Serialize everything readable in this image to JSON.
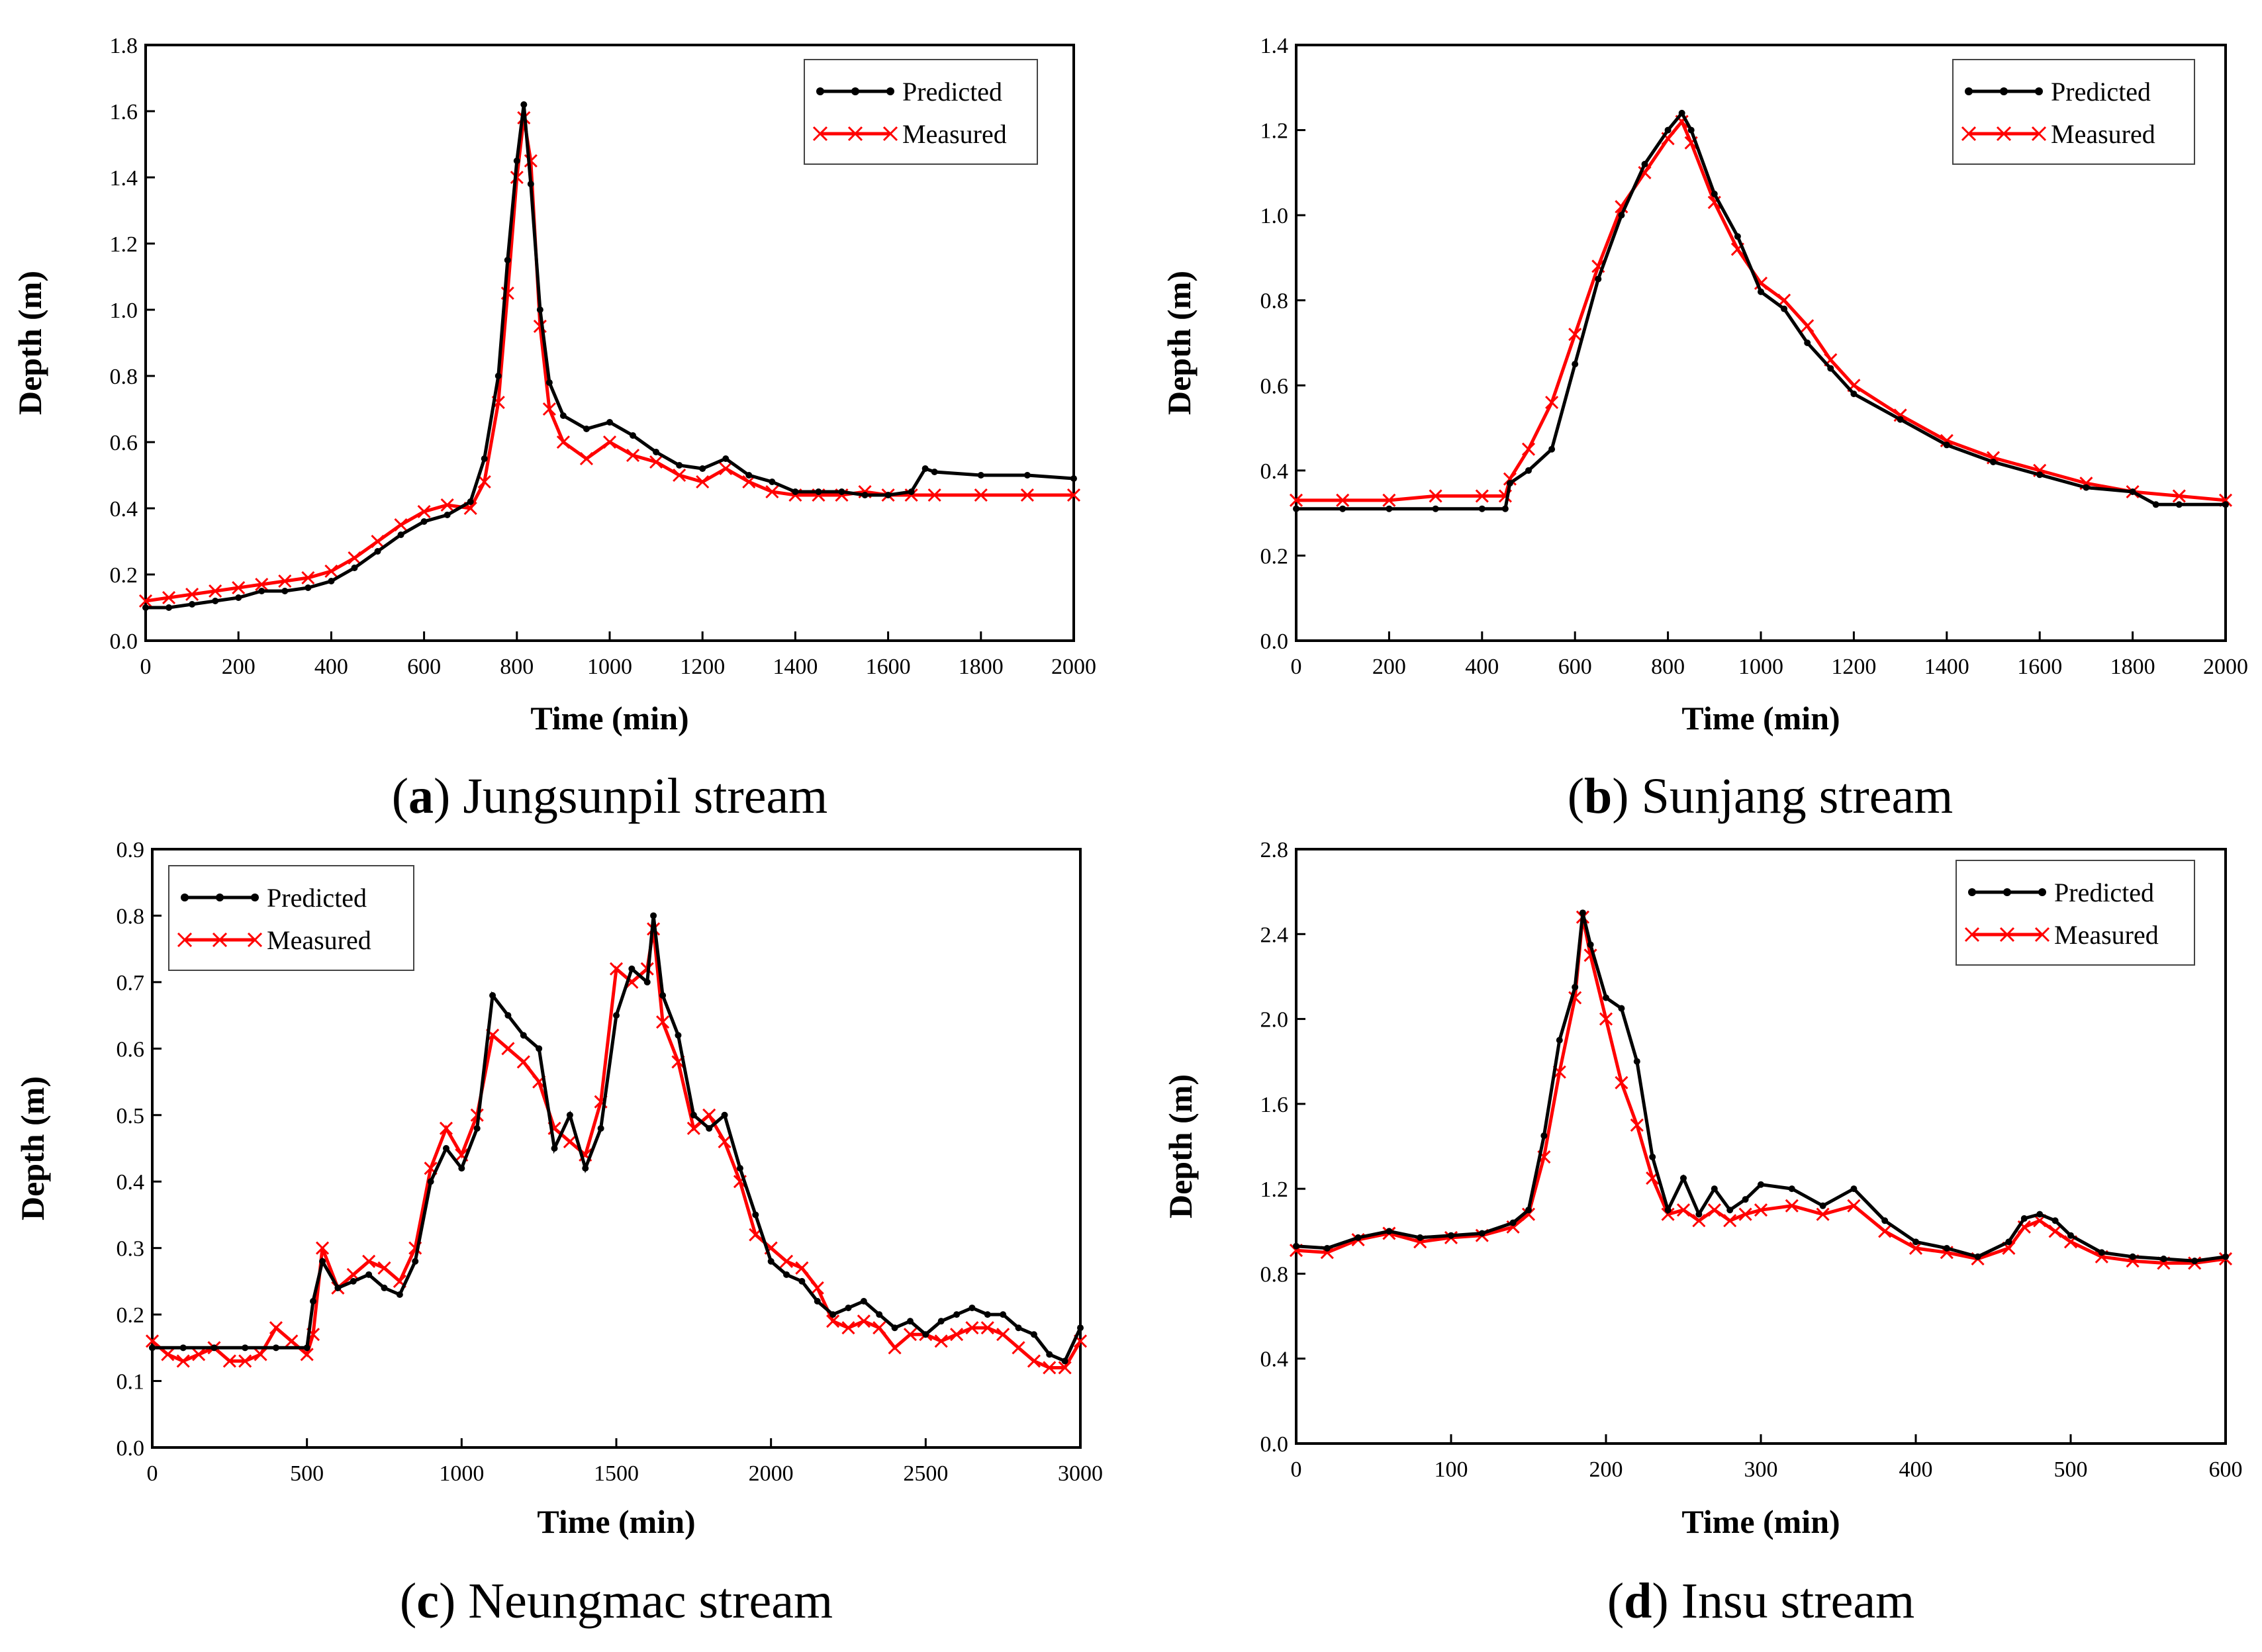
{
  "colors": {
    "predicted": "#000000",
    "measured": "#ff0000",
    "axis": "#000000"
  },
  "legend": {
    "predicted_label": "Predicted",
    "measured_label": "Measured"
  },
  "chart_data": [
    {
      "type": "line",
      "caption_letter": "a",
      "caption_text": "Jungsunpil stream",
      "xlabel": "Time (min)",
      "ylabel": "Depth (m)",
      "xlim": [
        0,
        2000
      ],
      "ylim": [
        0,
        1.8
      ],
      "xticks": [
        0,
        200,
        400,
        600,
        800,
        1000,
        1200,
        1400,
        1600,
        1800,
        2000
      ],
      "yticks": [
        0.0,
        0.2,
        0.4,
        0.6,
        0.8,
        1.0,
        1.2,
        1.4,
        1.6,
        1.8
      ],
      "ytick_decimals": 1,
      "legend_position": "top-right",
      "series": [
        {
          "name": "Predicted",
          "x": [
            0,
            50,
            100,
            150,
            200,
            250,
            300,
            350,
            400,
            450,
            500,
            550,
            600,
            650,
            700,
            730,
            760,
            780,
            800,
            815,
            830,
            850,
            870,
            900,
            950,
            1000,
            1050,
            1100,
            1150,
            1200,
            1250,
            1300,
            1350,
            1400,
            1450,
            1500,
            1550,
            1600,
            1650,
            1680,
            1700,
            1800,
            1900,
            2000
          ],
          "y": [
            0.1,
            0.1,
            0.11,
            0.12,
            0.13,
            0.15,
            0.15,
            0.16,
            0.18,
            0.22,
            0.27,
            0.32,
            0.36,
            0.38,
            0.42,
            0.55,
            0.8,
            1.15,
            1.45,
            1.62,
            1.38,
            1.0,
            0.78,
            0.68,
            0.64,
            0.66,
            0.62,
            0.57,
            0.53,
            0.52,
            0.55,
            0.5,
            0.48,
            0.45,
            0.45,
            0.45,
            0.44,
            0.44,
            0.45,
            0.52,
            0.51,
            0.5,
            0.5,
            0.49
          ]
        },
        {
          "name": "Measured",
          "x": [
            0,
            50,
            100,
            150,
            200,
            250,
            300,
            350,
            400,
            450,
            500,
            550,
            600,
            650,
            700,
            730,
            760,
            780,
            800,
            815,
            830,
            850,
            870,
            900,
            950,
            1000,
            1050,
            1100,
            1150,
            1200,
            1250,
            1300,
            1350,
            1400,
            1450,
            1500,
            1550,
            1600,
            1650,
            1700,
            1800,
            1900,
            2000
          ],
          "y": [
            0.12,
            0.13,
            0.14,
            0.15,
            0.16,
            0.17,
            0.18,
            0.19,
            0.21,
            0.25,
            0.3,
            0.35,
            0.39,
            0.41,
            0.4,
            0.48,
            0.72,
            1.05,
            1.4,
            1.58,
            1.45,
            0.95,
            0.7,
            0.6,
            0.55,
            0.6,
            0.56,
            0.54,
            0.5,
            0.48,
            0.52,
            0.48,
            0.45,
            0.44,
            0.44,
            0.44,
            0.45,
            0.44,
            0.44,
            0.44,
            0.44,
            0.44,
            0.44
          ]
        }
      ]
    },
    {
      "type": "line",
      "caption_letter": "b",
      "caption_text": "Sunjang stream",
      "xlabel": "Time (min)",
      "ylabel": "Depth (m)",
      "xlim": [
        0,
        2000
      ],
      "ylim": [
        0,
        1.4
      ],
      "xticks": [
        0,
        200,
        400,
        600,
        800,
        1000,
        1200,
        1400,
        1600,
        1800,
        2000
      ],
      "yticks": [
        0.0,
        0.2,
        0.4,
        0.6,
        0.8,
        1.0,
        1.2,
        1.4
      ],
      "ytick_decimals": 1,
      "legend_position": "top-right",
      "series": [
        {
          "name": "Predicted",
          "x": [
            0,
            100,
            200,
            300,
            400,
            450,
            460,
            500,
            550,
            600,
            650,
            700,
            750,
            800,
            830,
            850,
            900,
            950,
            1000,
            1050,
            1100,
            1150,
            1200,
            1300,
            1400,
            1500,
            1600,
            1700,
            1800,
            1850,
            1900,
            2000
          ],
          "y": [
            0.31,
            0.31,
            0.31,
            0.31,
            0.31,
            0.31,
            0.37,
            0.4,
            0.45,
            0.65,
            0.85,
            1.0,
            1.12,
            1.2,
            1.24,
            1.2,
            1.05,
            0.95,
            0.82,
            0.78,
            0.7,
            0.64,
            0.58,
            0.52,
            0.46,
            0.42,
            0.39,
            0.36,
            0.35,
            0.32,
            0.32,
            0.32
          ]
        },
        {
          "name": "Measured",
          "x": [
            0,
            100,
            200,
            300,
            400,
            450,
            460,
            500,
            550,
            600,
            650,
            700,
            750,
            800,
            830,
            850,
            900,
            950,
            1000,
            1050,
            1100,
            1150,
            1200,
            1300,
            1400,
            1500,
            1600,
            1700,
            1800,
            1900,
            2000
          ],
          "y": [
            0.33,
            0.33,
            0.33,
            0.34,
            0.34,
            0.34,
            0.38,
            0.45,
            0.56,
            0.72,
            0.88,
            1.02,
            1.1,
            1.18,
            1.22,
            1.17,
            1.03,
            0.92,
            0.84,
            0.8,
            0.74,
            0.66,
            0.6,
            0.53,
            0.47,
            0.43,
            0.4,
            0.37,
            0.35,
            0.34,
            0.33
          ]
        }
      ]
    },
    {
      "type": "line",
      "caption_letter": "c",
      "caption_text": "Neungmac stream",
      "xlabel": "Time (min)",
      "ylabel": "Depth (m)",
      "xlim": [
        0,
        3000
      ],
      "ylim": [
        0,
        0.9
      ],
      "xticks": [
        0,
        500,
        1000,
        1500,
        2000,
        2500,
        3000
      ],
      "yticks": [
        0.0,
        0.1,
        0.2,
        0.3,
        0.4,
        0.5,
        0.6,
        0.7,
        0.8,
        0.9
      ],
      "ytick_decimals": 1,
      "legend_position": "top-left",
      "series": [
        {
          "name": "Predicted",
          "x": [
            0,
            100,
            200,
            300,
            400,
            500,
            520,
            550,
            600,
            650,
            700,
            750,
            800,
            850,
            900,
            950,
            1000,
            1050,
            1100,
            1150,
            1200,
            1250,
            1300,
            1350,
            1400,
            1450,
            1500,
            1550,
            1600,
            1620,
            1650,
            1700,
            1750,
            1800,
            1850,
            1900,
            1950,
            2000,
            2050,
            2100,
            2150,
            2200,
            2250,
            2300,
            2350,
            2400,
            2450,
            2500,
            2550,
            2600,
            2650,
            2700,
            2750,
            2800,
            2850,
            2900,
            2950,
            3000
          ],
          "y": [
            0.15,
            0.15,
            0.15,
            0.15,
            0.15,
            0.15,
            0.22,
            0.28,
            0.24,
            0.25,
            0.26,
            0.24,
            0.23,
            0.28,
            0.4,
            0.45,
            0.42,
            0.48,
            0.68,
            0.65,
            0.62,
            0.6,
            0.45,
            0.5,
            0.42,
            0.48,
            0.65,
            0.72,
            0.7,
            0.8,
            0.68,
            0.62,
            0.5,
            0.48,
            0.5,
            0.42,
            0.35,
            0.28,
            0.26,
            0.25,
            0.22,
            0.2,
            0.21,
            0.22,
            0.2,
            0.18,
            0.19,
            0.17,
            0.19,
            0.2,
            0.21,
            0.2,
            0.2,
            0.18,
            0.17,
            0.14,
            0.13,
            0.18
          ]
        },
        {
          "name": "Measured",
          "x": [
            0,
            50,
            100,
            150,
            200,
            250,
            300,
            350,
            400,
            450,
            500,
            520,
            550,
            600,
            650,
            700,
            750,
            800,
            850,
            900,
            950,
            1000,
            1050,
            1100,
            1150,
            1200,
            1250,
            1300,
            1350,
            1400,
            1450,
            1500,
            1550,
            1600,
            1620,
            1650,
            1700,
            1750,
            1800,
            1850,
            1900,
            1950,
            2000,
            2050,
            2100,
            2150,
            2200,
            2250,
            2300,
            2350,
            2400,
            2450,
            2500,
            2550,
            2600,
            2650,
            2700,
            2750,
            2800,
            2850,
            2900,
            2950,
            3000
          ],
          "y": [
            0.16,
            0.14,
            0.13,
            0.14,
            0.15,
            0.13,
            0.13,
            0.14,
            0.18,
            0.16,
            0.14,
            0.17,
            0.3,
            0.24,
            0.26,
            0.28,
            0.27,
            0.25,
            0.3,
            0.42,
            0.48,
            0.44,
            0.5,
            0.62,
            0.6,
            0.58,
            0.55,
            0.48,
            0.46,
            0.44,
            0.52,
            0.72,
            0.7,
            0.72,
            0.78,
            0.64,
            0.58,
            0.48,
            0.5,
            0.46,
            0.4,
            0.32,
            0.3,
            0.28,
            0.27,
            0.24,
            0.19,
            0.18,
            0.19,
            0.18,
            0.15,
            0.17,
            0.17,
            0.16,
            0.17,
            0.18,
            0.18,
            0.17,
            0.15,
            0.13,
            0.12,
            0.12,
            0.16
          ]
        }
      ]
    },
    {
      "type": "line",
      "caption_letter": "d",
      "caption_text": "Insu stream",
      "xlabel": "Time (min)",
      "ylabel": "Depth (m)",
      "xlim": [
        0,
        600
      ],
      "ylim": [
        0,
        2.8
      ],
      "xticks": [
        0,
        100,
        200,
        300,
        400,
        500,
        600
      ],
      "yticks": [
        0.0,
        0.4,
        0.8,
        1.2,
        1.6,
        2.0,
        2.4,
        2.8
      ],
      "ytick_decimals": 1,
      "legend_position": "top-right",
      "series": [
        {
          "name": "Predicted",
          "x": [
            0,
            20,
            40,
            60,
            80,
            100,
            120,
            140,
            150,
            160,
            170,
            180,
            185,
            190,
            200,
            210,
            220,
            230,
            240,
            250,
            260,
            270,
            280,
            290,
            300,
            320,
            340,
            360,
            380,
            400,
            420,
            440,
            460,
            470,
            480,
            490,
            500,
            520,
            540,
            560,
            580,
            600
          ],
          "y": [
            0.93,
            0.92,
            0.97,
            1.0,
            0.97,
            0.98,
            0.99,
            1.04,
            1.1,
            1.45,
            1.9,
            2.15,
            2.5,
            2.35,
            2.1,
            2.05,
            1.8,
            1.35,
            1.1,
            1.25,
            1.08,
            1.2,
            1.1,
            1.15,
            1.22,
            1.2,
            1.12,
            1.2,
            1.05,
            0.95,
            0.92,
            0.88,
            0.95,
            1.06,
            1.08,
            1.05,
            0.98,
            0.9,
            0.88,
            0.87,
            0.86,
            0.88
          ]
        },
        {
          "name": "Measured",
          "x": [
            0,
            20,
            40,
            60,
            80,
            100,
            120,
            140,
            150,
            160,
            170,
            180,
            185,
            190,
            200,
            210,
            220,
            230,
            240,
            250,
            260,
            270,
            280,
            290,
            300,
            320,
            340,
            360,
            380,
            400,
            420,
            440,
            460,
            470,
            480,
            490,
            500,
            520,
            540,
            560,
            580,
            600
          ],
          "y": [
            0.91,
            0.9,
            0.96,
            0.99,
            0.95,
            0.97,
            0.98,
            1.02,
            1.08,
            1.35,
            1.75,
            2.1,
            2.48,
            2.3,
            2.0,
            1.7,
            1.5,
            1.25,
            1.08,
            1.1,
            1.05,
            1.1,
            1.05,
            1.08,
            1.1,
            1.12,
            1.08,
            1.12,
            1.0,
            0.92,
            0.9,
            0.87,
            0.92,
            1.02,
            1.05,
            1.0,
            0.95,
            0.88,
            0.86,
            0.85,
            0.85,
            0.87
          ]
        }
      ]
    }
  ]
}
